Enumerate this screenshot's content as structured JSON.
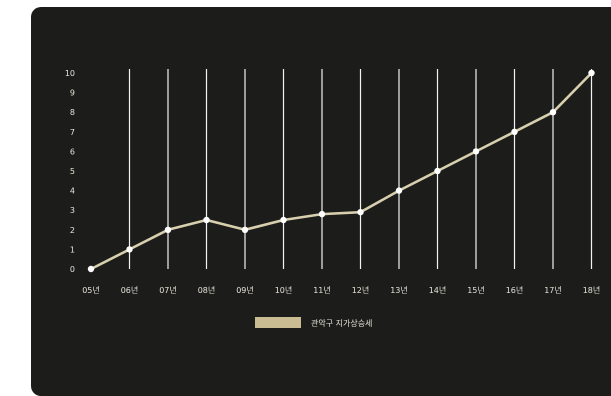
{
  "chart_data": {
    "type": "line",
    "categories": [
      "05년",
      "06년",
      "07년",
      "08년",
      "09년",
      "10년",
      "11년",
      "12년",
      "13년",
      "14년",
      "15년",
      "16년",
      "17년",
      "18년"
    ],
    "series": [
      {
        "name": "관악구 지가상승세",
        "values": [
          0,
          1,
          2,
          2.5,
          2,
          2.5,
          2.8,
          2.9,
          4,
          5,
          6,
          7,
          8,
          10
        ]
      }
    ],
    "ylim": [
      0,
      10
    ],
    "yticks": [
      "0",
      "1",
      "2",
      "3",
      "4",
      "5",
      "6",
      "7",
      "8",
      "9",
      "10"
    ],
    "grid": "vertical",
    "legend": "bottom",
    "colors": {
      "background": "#1c1c1a",
      "line": "#d8cfae",
      "grid": "#f2f2f2",
      "legend_swatch": "#c9bb92",
      "marker": "#ffffff"
    }
  }
}
